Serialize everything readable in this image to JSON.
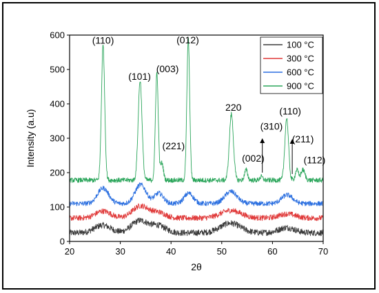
{
  "chart_data": {
    "type": "line",
    "xlabel": "2θ",
    "ylabel": "Intensity (a.u)",
    "xlim": [
      20,
      70
    ],
    "ylim": [
      0,
      600
    ],
    "xticks": [
      20,
      30,
      40,
      50,
      60,
      70
    ],
    "yticks": [
      0,
      100,
      200,
      300,
      400,
      500,
      600
    ],
    "grid": false,
    "legend_position": "top-right",
    "series": [
      {
        "name": "100 °C",
        "color": "#3a3a3a",
        "baseline": 25,
        "noise": 9,
        "peaks": [
          [
            26.5,
            22,
            1.6
          ],
          [
            33.8,
            35,
            1.6
          ],
          [
            37.5,
            20,
            1.5
          ],
          [
            51.7,
            28,
            2.0
          ],
          [
            62.8,
            15,
            1.6
          ]
        ]
      },
      {
        "name": "300 °C",
        "color": "#e03a3a",
        "baseline": 68,
        "noise": 8,
        "peaks": [
          [
            26.6,
            20,
            1.5
          ],
          [
            34.0,
            35,
            1.6
          ],
          [
            37.6,
            15,
            1.4
          ],
          [
            51.8,
            22,
            2.0
          ],
          [
            62.9,
            12,
            1.6
          ]
        ]
      },
      {
        "name": "600 °C",
        "color": "#2b6fe0",
        "baseline": 110,
        "noise": 7,
        "peaks": [
          [
            26.6,
            45,
            1.1
          ],
          [
            34.0,
            55,
            1.1
          ],
          [
            37.6,
            30,
            0.9
          ],
          [
            43.5,
            30,
            0.9
          ],
          [
            51.8,
            35,
            1.2
          ],
          [
            62.9,
            25,
            1.1
          ]
        ]
      },
      {
        "name": "900 °C",
        "color": "#2aa55a",
        "baseline": 178,
        "noise": 7,
        "peaks": [
          [
            26.6,
            392,
            0.32
          ],
          [
            33.9,
            290,
            0.38
          ],
          [
            37.2,
            312,
            0.28
          ],
          [
            38.2,
            50,
            0.3
          ],
          [
            43.4,
            410,
            0.28
          ],
          [
            51.9,
            192,
            0.4
          ],
          [
            54.8,
            30,
            0.3
          ],
          [
            57.8,
            10,
            0.3
          ],
          [
            62.8,
            180,
            0.36
          ],
          [
            64.8,
            30,
            0.3
          ],
          [
            66.0,
            30,
            0.4
          ]
        ]
      }
    ],
    "annotations": [
      {
        "text": "(110)",
        "x": 26.6,
        "y": 575,
        "arrow": false
      },
      {
        "text": "(101)",
        "x": 33.8,
        "y": 470,
        "arrow": false
      },
      {
        "text": "(003)",
        "x": 39.3,
        "y": 492,
        "arrow": false
      },
      {
        "text": "(012)",
        "x": 43.3,
        "y": 576,
        "arrow": false
      },
      {
        "text": "(221)",
        "x": 40.5,
        "y": 268,
        "arrow": false
      },
      {
        "text": "220",
        "x": 52.3,
        "y": 380,
        "arrow": false
      },
      {
        "text": "(002)",
        "x": 56.2,
        "y": 232,
        "arrow": false
      },
      {
        "text": "(310)",
        "x": 59.8,
        "y": 325,
        "arrow": true,
        "arrow_from": 300,
        "arrow_to": 200
      },
      {
        "text": "(110)",
        "x": 63.5,
        "y": 369,
        "arrow": false
      },
      {
        "text": "(211)",
        "x": 66.0,
        "y": 288,
        "arrow": true,
        "arrow_from": 298,
        "arrow_to": 196
      },
      {
        "text": "(112)",
        "x": 68.3,
        "y": 227,
        "arrow": false
      }
    ]
  }
}
